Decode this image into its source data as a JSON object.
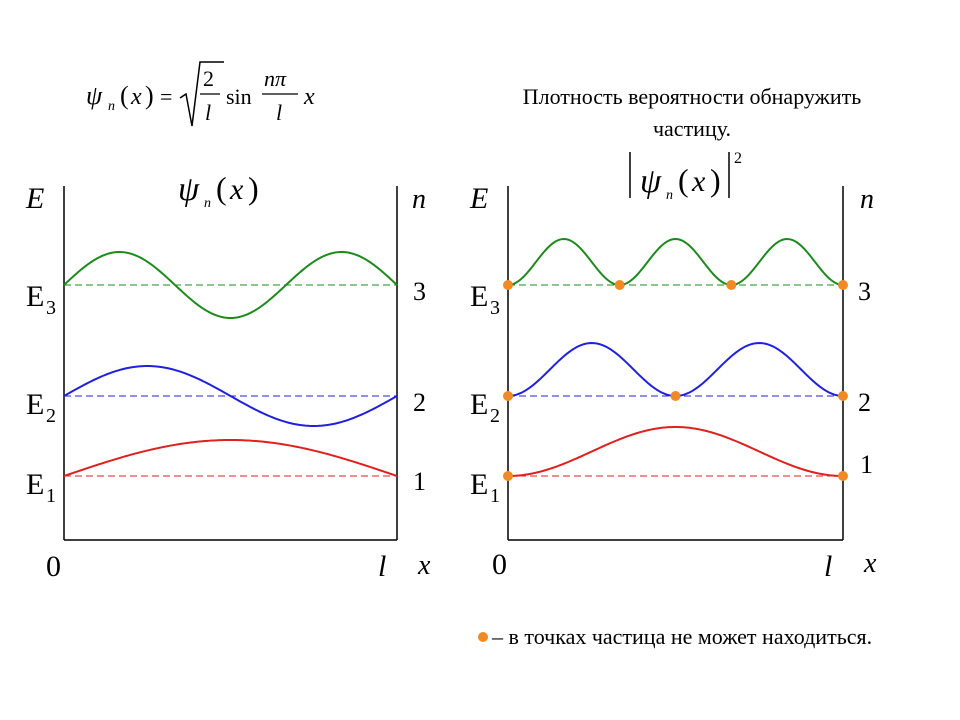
{
  "formula": {
    "psi": "ψ",
    "sub_n": "n",
    "arg": "x",
    "equals": "=",
    "num2": "2",
    "den_l": "l",
    "sin": "sin",
    "num_npi": "nπ",
    "den_l2": "l",
    "x": "x"
  },
  "left_panel": {
    "func_psi": "ψ",
    "func_sub": "n",
    "func_arg": "x",
    "axis_e": "E",
    "axis_n": "n",
    "levels": [
      {
        "label": "E",
        "sub": "1",
        "n": "1",
        "color": "#e02020"
      },
      {
        "label": "E",
        "sub": "2",
        "n": "2",
        "color": "#2020e0"
      },
      {
        "label": "E",
        "sub": "3",
        "n": "3",
        "color": "#1e8a1e"
      }
    ],
    "origin": "0",
    "l_label": "l",
    "x_label": "x"
  },
  "right_panel": {
    "title_line1": "Плотность вероятности обнаружить",
    "title_line2": "частицу.",
    "func_psi": "ψ",
    "func_sub": "n",
    "func_arg": "x",
    "func_power": "2",
    "axis_e": "E",
    "axis_n": "n",
    "levels": [
      {
        "label": "E",
        "sub": "1",
        "n": "1",
        "color": "#e02020"
      },
      {
        "label": "E",
        "sub": "2",
        "n": "2",
        "color": "#2020e0"
      },
      {
        "label": "E",
        "sub": "3",
        "n": "3",
        "color": "#1e8a1e"
      }
    ],
    "origin": "0",
    "l_label": "l",
    "x_label": "x",
    "node_color": "#f08a24"
  },
  "legend": {
    "text": "– в  точках частица не может находиться."
  }
}
